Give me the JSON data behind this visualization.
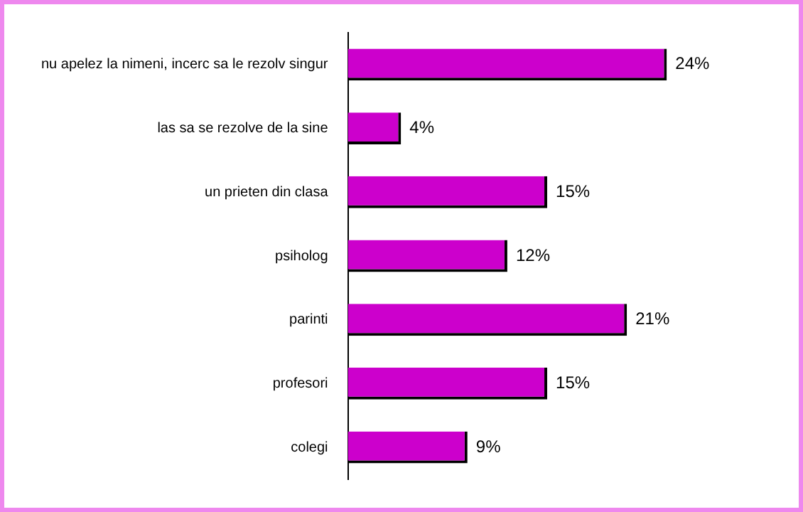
{
  "chart_data": {
    "type": "bar",
    "orientation": "horizontal",
    "categories": [
      "nu apelez la nimeni, incerc sa le rezolv singur",
      "las sa se rezolve de la sine",
      "un prieten din clasa",
      "psiholog",
      "parinti",
      "profesori",
      "colegi"
    ],
    "values": [
      24,
      4,
      15,
      12,
      21,
      15,
      9
    ],
    "value_labels": [
      "24%",
      "4%",
      "15%",
      "12%",
      "21%",
      "15%",
      "9%"
    ],
    "color": "#cc00cc",
    "grid": false,
    "legend": false
  }
}
